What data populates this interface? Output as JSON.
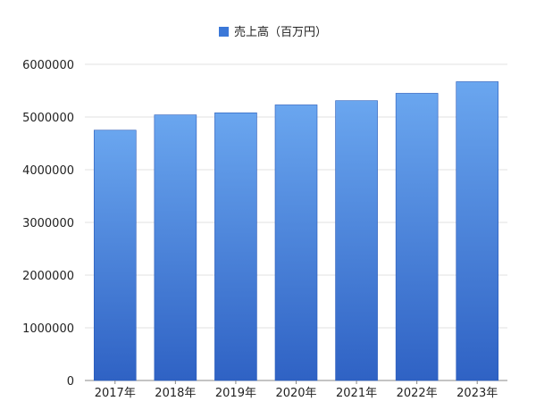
{
  "chart_data": {
    "type": "bar",
    "categories": [
      "2017年",
      "2018年",
      "2019年",
      "2020年",
      "2021年",
      "2022年",
      "2023年"
    ],
    "series": [
      {
        "name": "売上高（百万円）",
        "values": [
          4750000,
          5040000,
          5080000,
          5230000,
          5310000,
          5450000,
          5670000
        ]
      }
    ],
    "y_ticks": [
      "0",
      "1000000",
      "2000000",
      "3000000",
      "4000000",
      "5000000",
      "6000000"
    ],
    "ylim": [
      0,
      6000000
    ],
    "grid": true,
    "legend_position": "top-center",
    "colors": {
      "bar_top": "#6aa6ef",
      "bar_bottom": "#2f62c4",
      "bar_stroke": "#2a5bb8",
      "legend_swatch": "#3b78d8",
      "grid": "#e2e2e2",
      "axis": "#888888"
    }
  }
}
